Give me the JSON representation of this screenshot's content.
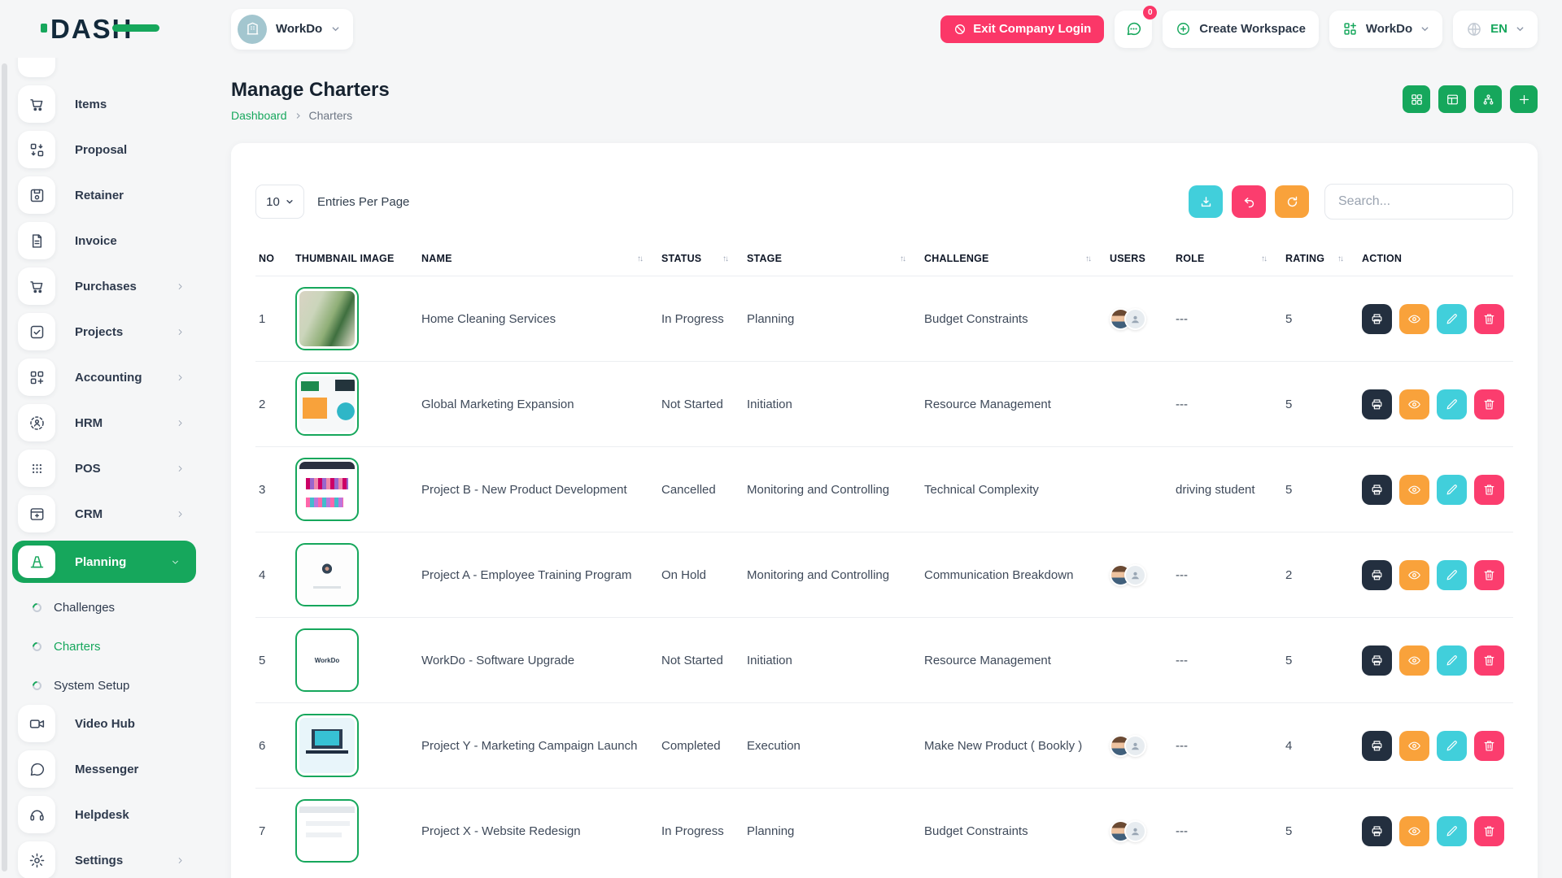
{
  "brand": {
    "logo_text": "DASH"
  },
  "topbar": {
    "workspace_label": "WorkDo",
    "exit_label": "Exit Company Login",
    "messages_badge": "0",
    "create_workspace_label": "Create Workspace",
    "workdo_menu_label": "WorkDo",
    "language_code": "EN"
  },
  "page": {
    "title": "Manage Charters",
    "breadcrumb": [
      "Dashboard",
      "Charters"
    ],
    "header_action_icons": [
      "grid-view",
      "table-view",
      "hierarchy-view",
      "add"
    ]
  },
  "toolbar": {
    "entries_value": "10",
    "entries_label": "Entries Per Page",
    "search_placeholder": "Search...",
    "button_icons": [
      "download",
      "undo",
      "refresh"
    ]
  },
  "sidebar": {
    "items": [
      {
        "label": "Items",
        "icon": "cart"
      },
      {
        "label": "Proposal",
        "icon": "proposal"
      },
      {
        "label": "Retainer",
        "icon": "retainer"
      },
      {
        "label": "Invoice",
        "icon": "invoice"
      },
      {
        "label": "Purchases",
        "icon": "cart",
        "chevron": true
      },
      {
        "label": "Projects",
        "icon": "check-square",
        "chevron": true
      },
      {
        "label": "Accounting",
        "icon": "grid-plus",
        "chevron": true
      },
      {
        "label": "HRM",
        "icon": "hrm",
        "chevron": true
      },
      {
        "label": "POS",
        "icon": "pos",
        "chevron": true
      },
      {
        "label": "CRM",
        "icon": "crm",
        "chevron": true
      },
      {
        "label": "Planning",
        "icon": "cone",
        "chevron": "down",
        "active": true
      },
      {
        "label": "Challenges",
        "sub": true
      },
      {
        "label": "Charters",
        "sub": true,
        "active": true
      },
      {
        "label": "System Setup",
        "sub": true
      },
      {
        "label": "Video Hub",
        "icon": "video"
      },
      {
        "label": "Messenger",
        "icon": "chat"
      },
      {
        "label": "Helpdesk",
        "icon": "headset"
      },
      {
        "label": "Settings",
        "icon": "gear",
        "chevron": true
      }
    ]
  },
  "table": {
    "columns": [
      {
        "label": "NO",
        "sortable": false
      },
      {
        "label": "THUMBNAIL IMAGE",
        "sortable": false
      },
      {
        "label": "NAME",
        "sortable": true
      },
      {
        "label": "STATUS",
        "sortable": true
      },
      {
        "label": "STAGE",
        "sortable": true
      },
      {
        "label": "CHALLENGE",
        "sortable": true
      },
      {
        "label": "USERS",
        "sortable": false
      },
      {
        "label": "ROLE",
        "sortable": true
      },
      {
        "label": "RATING",
        "sortable": true
      },
      {
        "label": "ACTION",
        "sortable": false
      }
    ],
    "row_actions": [
      {
        "name": "print",
        "color": "dark"
      },
      {
        "name": "view",
        "color": "orange"
      },
      {
        "name": "edit",
        "color": "teal"
      },
      {
        "name": "delete",
        "color": "pink"
      }
    ],
    "rows": [
      {
        "no": "1",
        "thumb": "cleaning-service-photo",
        "thumb_text": "",
        "name": "Home Cleaning Services",
        "status": "In Progress",
        "stage": "Planning",
        "challenge": "Budget Constraints",
        "users": 2,
        "role": "---",
        "rating": "5"
      },
      {
        "no": "2",
        "thumb": "marketing-collage",
        "thumb_text": "",
        "name": "Global Marketing Expansion",
        "status": "Not Started",
        "stage": "Initiation",
        "challenge": "Resource Management",
        "users": 0,
        "role": "---",
        "rating": "5"
      },
      {
        "no": "3",
        "thumb": "website-screenshot-dark-header",
        "thumb_text": "",
        "name": "Project B - New Product Development",
        "status": "Cancelled",
        "stage": "Monitoring and Controlling",
        "challenge": "Technical Complexity",
        "users": 0,
        "role": "driving student",
        "rating": "5"
      },
      {
        "no": "4",
        "thumb": "document-with-figure",
        "thumb_text": "",
        "name": "Project A - Employee Training Program",
        "status": "On Hold",
        "stage": "Monitoring and Controlling",
        "challenge": "Communication Breakdown",
        "users": 2,
        "role": "---",
        "rating": "2"
      },
      {
        "no": "5",
        "thumb": "workdo-logo",
        "thumb_text": "WorkDo",
        "name": "WorkDo - Software Upgrade",
        "status": "Not Started",
        "stage": "Initiation",
        "challenge": "Resource Management",
        "users": 0,
        "role": "---",
        "rating": "5"
      },
      {
        "no": "6",
        "thumb": "laptop-illustration",
        "thumb_text": "",
        "name": "Project Y - Marketing Campaign Launch",
        "status": "Completed",
        "stage": "Execution",
        "challenge": "Make New Product ( Bookly )",
        "users": 2,
        "role": "---",
        "rating": "4"
      },
      {
        "no": "7",
        "thumb": "website-screenshot-light",
        "thumb_text": "",
        "name": "Project X - Website Redesign",
        "status": "In Progress",
        "stage": "Planning",
        "challenge": "Budget Constraints",
        "users": 2,
        "role": "---",
        "rating": "5"
      }
    ]
  },
  "colors": {
    "primary_green": "#16a75c",
    "pink": "#fb3768",
    "teal": "#41cfdb",
    "orange": "#f9a23b",
    "dark_navy": "#232f3f"
  }
}
